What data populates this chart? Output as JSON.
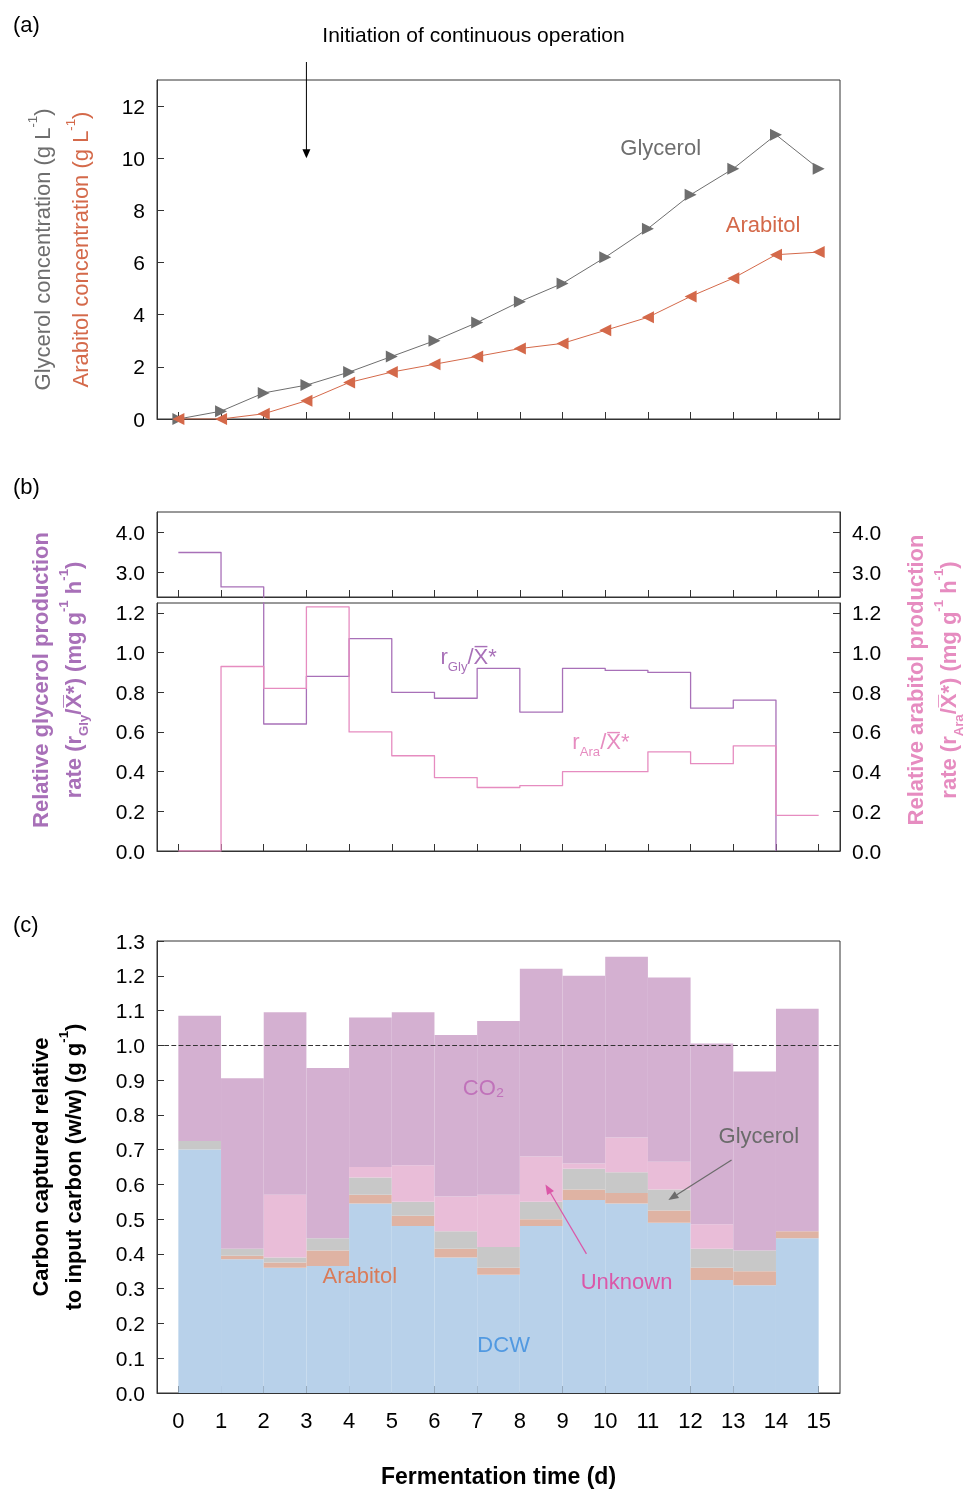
{
  "chart_data": [
    {
      "type": "line",
      "title": "(a)",
      "ylabel": "Glycerol concentration (g L$^{-1}$)",
      "annotations": [
        "Arabitol concentration (g L$^{-1}$)",
        "Initiation of continuous operation"
      ],
      "x": [
        0,
        1,
        2,
        3,
        4,
        5,
        6,
        7,
        8,
        9,
        10,
        11,
        12,
        13,
        14,
        15
      ],
      "xlim": [
        -0.5,
        15.5
      ],
      "xticks": [
        0,
        1,
        2,
        3,
        4,
        5,
        6,
        7,
        8,
        9,
        10,
        11,
        12,
        13,
        14,
        15
      ],
      "ylim": [
        0,
        13
      ],
      "yticks": [
        0,
        2,
        4,
        6,
        8,
        10,
        12
      ],
      "tick_labels": "y",
      "marker": "triangle",
      "series": [
        {
          "name": "Glycerol",
          "color": "#6e6e6e",
          "values": [
            0,
            0.3,
            1.0,
            1.3,
            1.8,
            2.4,
            3.0,
            3.7,
            4.5,
            5.2,
            6.2,
            7.3,
            8.6,
            9.6,
            10.9,
            9.6
          ]
        },
        {
          "name": "Arabitol",
          "color": "#d4694a",
          "values": [
            0,
            0,
            0.2,
            0.7,
            1.4,
            1.8,
            2.1,
            2.4,
            2.7,
            2.9,
            3.4,
            3.9,
            4.7,
            5.4,
            6.3,
            6.4
          ]
        }
      ]
    },
    {
      "type": "step",
      "title": "(b)",
      "x": [
        0,
        1,
        2
      ],
      "xlim": [
        -0.5,
        15.5
      ],
      "xticks": [
        0,
        1,
        2,
        3,
        4,
        5,
        6,
        7,
        8,
        9,
        10,
        11,
        12,
        13,
        14,
        15
      ],
      "ylim": [
        2.4,
        4.5
      ],
      "yticks": [
        {
          "value": 3,
          "label": "3.0"
        },
        {
          "value": 4,
          "label": "4.0"
        }
      ],
      "y2lim": [
        2.4,
        4.5
      ],
      "y2ticks": [
        {
          "value": 3,
          "label": "3.0"
        },
        {
          "value": 4,
          "label": "4.0"
        }
      ],
      "tick_labels": "y",
      "series": [
        {
          "color": "#a870b8",
          "values": [
            3.5,
            2.65,
            2.65
          ]
        }
      ]
    },
    {
      "type": "step",
      "ylabel": "Relative glycerol production\nrate (r$_{Gly}$/X̅*) (mg g$^{-1}$ h$^{-1}$)",
      "y2label": "Relative arabitol production\nrate (r$_{Ara}$/X̅*) (mg g$^{-1}$ h$^{-1}$)",
      "x": [
        0,
        1,
        2,
        3,
        4,
        5,
        6,
        7,
        8,
        9,
        10,
        11,
        12,
        13,
        14,
        15
      ],
      "xlim": [
        -0.5,
        15.5
      ],
      "xticks": [
        0,
        1,
        2,
        3,
        4,
        5,
        6,
        7,
        8,
        9,
        10,
        11,
        12,
        13,
        14,
        15
      ],
      "ylim": [
        0,
        1.25
      ],
      "yticks": [
        {
          "value": 0,
          "label": "0.0"
        },
        0.2,
        0.4,
        0.6,
        0.8,
        {
          "value": 1,
          "label": "1.0"
        },
        1.2
      ],
      "y2lim": [
        0,
        1.25
      ],
      "y2ticks": [
        {
          "value": 0,
          "label": "0.0"
        },
        0.2,
        0.4,
        0.6,
        0.8,
        {
          "value": 1,
          "label": "1.0"
        },
        1.2
      ],
      "tick_labels": "y",
      "series": [
        {
          "name": "r$_{Gly}$/X̅*",
          "color": "#a870b8",
          "values": [
            null,
            null,
            0.64,
            0.88,
            1.07,
            0.8,
            0.77,
            0.92,
            0.7,
            0.92,
            0.91,
            0.9,
            0.72,
            0.76,
            0,
            null
          ]
        },
        {
          "name": "r$_{Ara}$/X̅*",
          "color": "#e68cc0",
          "axis": "y2",
          "values": [
            0,
            0.93,
            0.82,
            1.23,
            0.6,
            0.48,
            0.37,
            0.32,
            0.33,
            0.4,
            0.4,
            0.5,
            0.44,
            0.53,
            0.18,
            0.18
          ]
        }
      ]
    },
    {
      "type": "bar",
      "stacked": true,
      "title": "(c)",
      "xlabel": "Fermentation time (d)",
      "ylabel": "Carbon captured relative\nto input carbon (w/w) (g g$^{-1}$)",
      "x": [
        0.5,
        1.5,
        2.5,
        3.5,
        4.5,
        5.5,
        6.5,
        7.5,
        8.5,
        9.5,
        10.5,
        11.5,
        12.5,
        13.5,
        14.5
      ],
      "xlim": [
        -0.5,
        15.5
      ],
      "xticks": [
        0,
        1,
        2,
        3,
        4,
        5,
        6,
        7,
        8,
        9,
        10,
        11,
        12,
        13,
        14,
        15
      ],
      "ylim": [
        0,
        1.3
      ],
      "yticks": [
        {
          "value": 0,
          "label": "0.0"
        },
        0.1,
        0.2,
        0.3,
        0.4,
        0.5,
        0.6,
        0.7,
        0.8,
        0.9,
        {
          "value": 1,
          "label": "1.0"
        },
        1.1,
        1.2,
        1.3
      ],
      "ref_lines": [
        {
          "axis": "y",
          "value": 1,
          "line_style": "dashed",
          "color": "#333333"
        }
      ],
      "series": [
        {
          "name": "DCW",
          "color": "#b8d1ea",
          "values": [
            0.7,
            0.385,
            0.36,
            0.365,
            0.545,
            0.48,
            0.39,
            0.34,
            0.48,
            0.555,
            0.545,
            0.49,
            0.325,
            0.31,
            0.445
          ]
        },
        {
          "name": "Arabitol",
          "color": "#dfb3a3",
          "values": [
            0,
            0.01,
            0.015,
            0.045,
            0.025,
            0.03,
            0.025,
            0.02,
            0.02,
            0.03,
            0.03,
            0.035,
            0.035,
            0.04,
            0.02
          ]
        },
        {
          "name": "Glycerol",
          "color": "#c8c8c8",
          "values": [
            0.025,
            0.02,
            0.015,
            0.035,
            0.05,
            0.04,
            0.05,
            0.06,
            0.05,
            0.06,
            0.06,
            0.06,
            0.055,
            0.06,
            0
          ]
        },
        {
          "name": "Unknown",
          "color": "#e9bdd8",
          "values": [
            0,
            0,
            0.18,
            0,
            0.03,
            0.105,
            0.1,
            0.15,
            0.13,
            0.015,
            0.1,
            0.08,
            0.07,
            0,
            0
          ]
        },
        {
          "name": "CO₂",
          "color": "#d4b0d1",
          "values": [
            0.36,
            0.49,
            0.525,
            0.49,
            0.43,
            0.44,
            0.465,
            0.5,
            0.54,
            0.54,
            0.52,
            0.53,
            0.52,
            0.515,
            0.64
          ]
        }
      ]
    }
  ]
}
